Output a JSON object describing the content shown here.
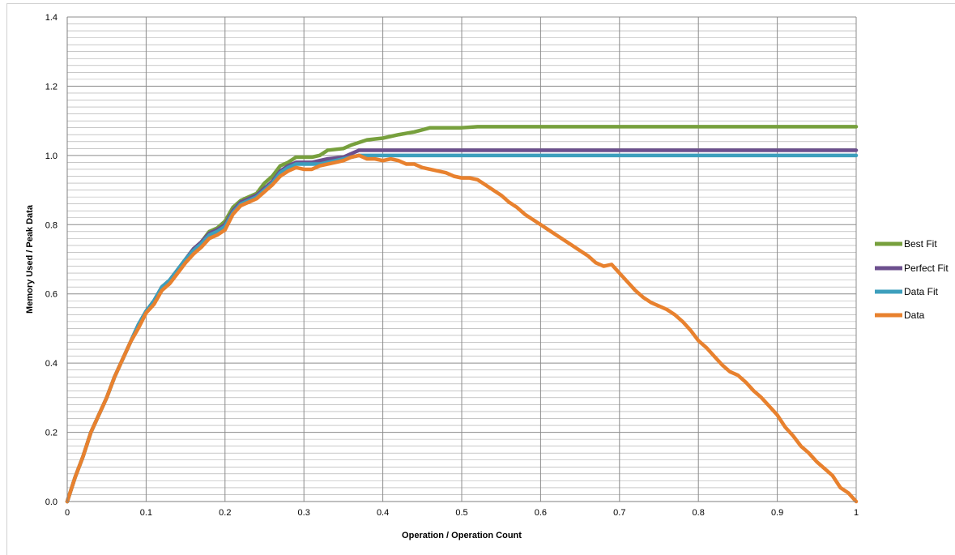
{
  "chart_data": {
    "type": "line",
    "title": "",
    "xlabel": "Operation / Operation Count",
    "ylabel": "Memory Used / Peak Data",
    "xlim": [
      0,
      1
    ],
    "ylim": [
      0,
      1.4
    ],
    "x_ticks": [
      "0",
      "0.1",
      "0.2",
      "0.3",
      "0.4",
      "0.5",
      "0.6",
      "0.7",
      "0.8",
      "0.9",
      "1"
    ],
    "y_ticks": [
      "0.0",
      "0.2",
      "0.4",
      "0.6",
      "0.8",
      "1.0",
      "1.2",
      "1.4"
    ],
    "grid": true,
    "legend_position": "right",
    "series": [
      {
        "name": "Best Fit",
        "color": "#77a03d",
        "points": [
          [
            0,
            0
          ],
          [
            0.01,
            0.07
          ],
          [
            0.02,
            0.13
          ],
          [
            0.03,
            0.2
          ],
          [
            0.04,
            0.25
          ],
          [
            0.05,
            0.3
          ],
          [
            0.06,
            0.36
          ],
          [
            0.07,
            0.41
          ],
          [
            0.08,
            0.46
          ],
          [
            0.09,
            0.51
          ],
          [
            0.1,
            0.55
          ],
          [
            0.11,
            0.58
          ],
          [
            0.12,
            0.62
          ],
          [
            0.13,
            0.64
          ],
          [
            0.14,
            0.67
          ],
          [
            0.15,
            0.7
          ],
          [
            0.16,
            0.73
          ],
          [
            0.17,
            0.75
          ],
          [
            0.18,
            0.78
          ],
          [
            0.19,
            0.79
          ],
          [
            0.2,
            0.81
          ],
          [
            0.21,
            0.85
          ],
          [
            0.22,
            0.87
          ],
          [
            0.23,
            0.88
          ],
          [
            0.24,
            0.89
          ],
          [
            0.25,
            0.92
          ],
          [
            0.26,
            0.94
          ],
          [
            0.27,
            0.97
          ],
          [
            0.28,
            0.98
          ],
          [
            0.29,
            0.995
          ],
          [
            0.3,
            0.995
          ],
          [
            0.31,
            0.995
          ],
          [
            0.32,
            1.0
          ],
          [
            0.33,
            1.015
          ],
          [
            0.35,
            1.02
          ],
          [
            0.36,
            1.03
          ],
          [
            0.38,
            1.045
          ],
          [
            0.4,
            1.05
          ],
          [
            0.42,
            1.06
          ],
          [
            0.44,
            1.068
          ],
          [
            0.46,
            1.08
          ],
          [
            0.5,
            1.08
          ],
          [
            0.52,
            1.083
          ],
          [
            1.0,
            1.083
          ]
        ]
      },
      {
        "name": "Perfect Fit",
        "color": "#6c4f8e",
        "points": [
          [
            0,
            0
          ],
          [
            0.01,
            0.07
          ],
          [
            0.02,
            0.13
          ],
          [
            0.03,
            0.2
          ],
          [
            0.04,
            0.25
          ],
          [
            0.05,
            0.3
          ],
          [
            0.06,
            0.36
          ],
          [
            0.07,
            0.41
          ],
          [
            0.08,
            0.46
          ],
          [
            0.09,
            0.51
          ],
          [
            0.1,
            0.55
          ],
          [
            0.11,
            0.58
          ],
          [
            0.12,
            0.62
          ],
          [
            0.13,
            0.64
          ],
          [
            0.14,
            0.67
          ],
          [
            0.15,
            0.7
          ],
          [
            0.16,
            0.73
          ],
          [
            0.17,
            0.75
          ],
          [
            0.18,
            0.775
          ],
          [
            0.19,
            0.785
          ],
          [
            0.2,
            0.8
          ],
          [
            0.21,
            0.84
          ],
          [
            0.22,
            0.865
          ],
          [
            0.23,
            0.875
          ],
          [
            0.24,
            0.885
          ],
          [
            0.25,
            0.905
          ],
          [
            0.26,
            0.925
          ],
          [
            0.27,
            0.955
          ],
          [
            0.28,
            0.97
          ],
          [
            0.29,
            0.98
          ],
          [
            0.3,
            0.98
          ],
          [
            0.31,
            0.98
          ],
          [
            0.32,
            0.985
          ],
          [
            0.33,
            0.99
          ],
          [
            0.35,
            0.995
          ],
          [
            0.36,
            1.005
          ],
          [
            0.37,
            1.015
          ],
          [
            1.0,
            1.015
          ]
        ]
      },
      {
        "name": "Data Fit",
        "color": "#3d9fbd",
        "points": [
          [
            0,
            0
          ],
          [
            0.01,
            0.07
          ],
          [
            0.02,
            0.13
          ],
          [
            0.03,
            0.2
          ],
          [
            0.04,
            0.25
          ],
          [
            0.05,
            0.3
          ],
          [
            0.06,
            0.36
          ],
          [
            0.07,
            0.41
          ],
          [
            0.08,
            0.46
          ],
          [
            0.09,
            0.51
          ],
          [
            0.1,
            0.55
          ],
          [
            0.11,
            0.58
          ],
          [
            0.12,
            0.62
          ],
          [
            0.13,
            0.64
          ],
          [
            0.14,
            0.67
          ],
          [
            0.15,
            0.7
          ],
          [
            0.16,
            0.725
          ],
          [
            0.17,
            0.745
          ],
          [
            0.18,
            0.77
          ],
          [
            0.19,
            0.78
          ],
          [
            0.2,
            0.795
          ],
          [
            0.21,
            0.835
          ],
          [
            0.22,
            0.86
          ],
          [
            0.23,
            0.87
          ],
          [
            0.24,
            0.88
          ],
          [
            0.25,
            0.9
          ],
          [
            0.26,
            0.92
          ],
          [
            0.27,
            0.95
          ],
          [
            0.28,
            0.965
          ],
          [
            0.29,
            0.975
          ],
          [
            0.3,
            0.975
          ],
          [
            0.31,
            0.975
          ],
          [
            0.32,
            0.975
          ],
          [
            0.33,
            0.98
          ],
          [
            0.35,
            0.99
          ],
          [
            0.36,
            0.995
          ],
          [
            0.37,
            1.0
          ],
          [
            1.0,
            1.0
          ]
        ]
      },
      {
        "name": "Data",
        "color": "#e8812e",
        "points": [
          [
            0,
            0
          ],
          [
            0.01,
            0.07
          ],
          [
            0.02,
            0.13
          ],
          [
            0.03,
            0.2
          ],
          [
            0.04,
            0.25
          ],
          [
            0.05,
            0.3
          ],
          [
            0.06,
            0.36
          ],
          [
            0.07,
            0.41
          ],
          [
            0.08,
            0.46
          ],
          [
            0.09,
            0.5
          ],
          [
            0.1,
            0.545
          ],
          [
            0.11,
            0.57
          ],
          [
            0.12,
            0.61
          ],
          [
            0.13,
            0.63
          ],
          [
            0.14,
            0.66
          ],
          [
            0.15,
            0.69
          ],
          [
            0.16,
            0.715
          ],
          [
            0.17,
            0.735
          ],
          [
            0.18,
            0.76
          ],
          [
            0.19,
            0.77
          ],
          [
            0.2,
            0.785
          ],
          [
            0.21,
            0.83
          ],
          [
            0.22,
            0.855
          ],
          [
            0.23,
            0.865
          ],
          [
            0.24,
            0.875
          ],
          [
            0.25,
            0.895
          ],
          [
            0.26,
            0.915
          ],
          [
            0.27,
            0.94
          ],
          [
            0.28,
            0.955
          ],
          [
            0.29,
            0.965
          ],
          [
            0.3,
            0.96
          ],
          [
            0.31,
            0.96
          ],
          [
            0.32,
            0.97
          ],
          [
            0.33,
            0.975
          ],
          [
            0.34,
            0.98
          ],
          [
            0.35,
            0.985
          ],
          [
            0.36,
            0.995
          ],
          [
            0.37,
            1.0
          ],
          [
            0.38,
            0.99
          ],
          [
            0.39,
            0.99
          ],
          [
            0.4,
            0.985
          ],
          [
            0.41,
            0.99
          ],
          [
            0.42,
            0.985
          ],
          [
            0.43,
            0.975
          ],
          [
            0.44,
            0.975
          ],
          [
            0.45,
            0.965
          ],
          [
            0.46,
            0.96
          ],
          [
            0.47,
            0.955
          ],
          [
            0.48,
            0.95
          ],
          [
            0.49,
            0.94
          ],
          [
            0.5,
            0.935
          ],
          [
            0.51,
            0.935
          ],
          [
            0.52,
            0.93
          ],
          [
            0.53,
            0.915
          ],
          [
            0.54,
            0.9
          ],
          [
            0.55,
            0.885
          ],
          [
            0.56,
            0.865
          ],
          [
            0.57,
            0.85
          ],
          [
            0.58,
            0.83
          ],
          [
            0.59,
            0.815
          ],
          [
            0.6,
            0.8
          ],
          [
            0.61,
            0.785
          ],
          [
            0.62,
            0.77
          ],
          [
            0.63,
            0.755
          ],
          [
            0.64,
            0.74
          ],
          [
            0.65,
            0.725
          ],
          [
            0.66,
            0.71
          ],
          [
            0.67,
            0.69
          ],
          [
            0.68,
            0.68
          ],
          [
            0.69,
            0.685
          ],
          [
            0.7,
            0.66
          ],
          [
            0.71,
            0.635
          ],
          [
            0.72,
            0.61
          ],
          [
            0.73,
            0.59
          ],
          [
            0.74,
            0.575
          ],
          [
            0.75,
            0.565
          ],
          [
            0.76,
            0.555
          ],
          [
            0.77,
            0.54
          ],
          [
            0.78,
            0.52
          ],
          [
            0.79,
            0.495
          ],
          [
            0.8,
            0.465
          ],
          [
            0.81,
            0.445
          ],
          [
            0.82,
            0.42
          ],
          [
            0.83,
            0.395
          ],
          [
            0.84,
            0.375
          ],
          [
            0.85,
            0.365
          ],
          [
            0.86,
            0.345
          ],
          [
            0.87,
            0.32
          ],
          [
            0.88,
            0.3
          ],
          [
            0.89,
            0.275
          ],
          [
            0.9,
            0.25
          ],
          [
            0.91,
            0.215
          ],
          [
            0.92,
            0.19
          ],
          [
            0.93,
            0.16
          ],
          [
            0.94,
            0.14
          ],
          [
            0.95,
            0.115
          ],
          [
            0.96,
            0.095
          ],
          [
            0.97,
            0.075
          ],
          [
            0.98,
            0.04
          ],
          [
            0.99,
            0.025
          ],
          [
            1.0,
            0.0
          ]
        ]
      }
    ]
  }
}
